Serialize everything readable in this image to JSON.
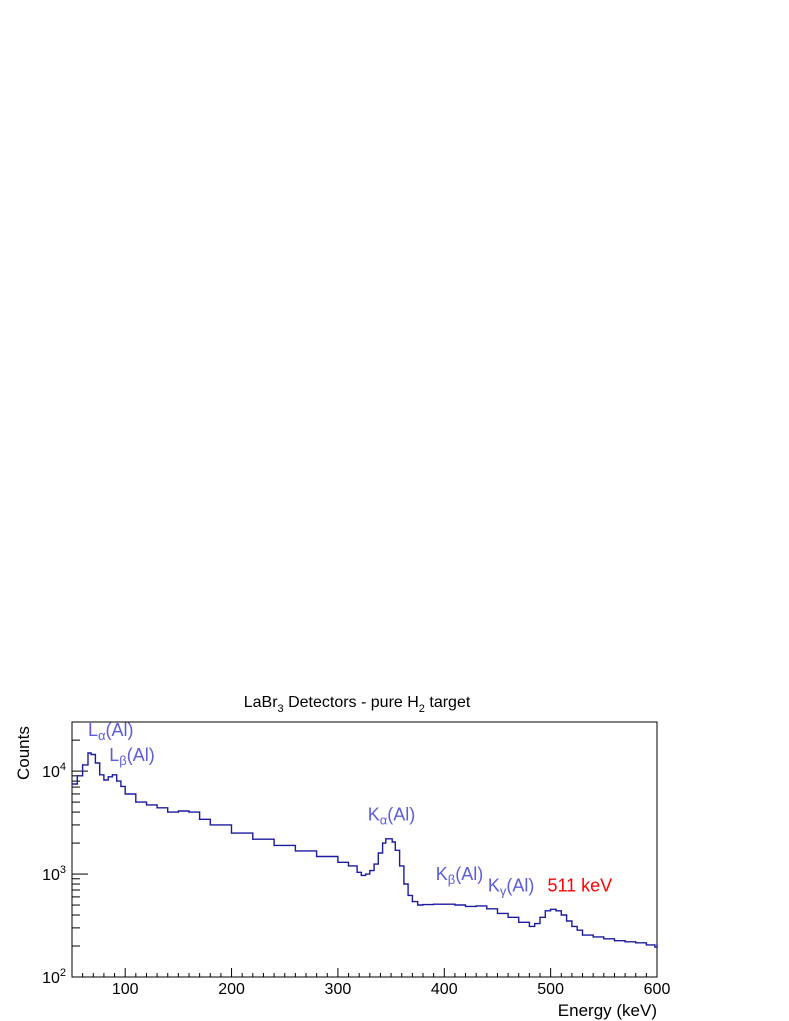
{
  "chart_data": {
    "type": "line",
    "title": {
      "main": "LaBr",
      "sub1": "3",
      "mid": " Detectors - pure H",
      "sub2": "2",
      "end": " target"
    },
    "xlabel": "Energy (keV)",
    "ylabel": "Counts",
    "xlim": [
      50,
      600
    ],
    "ylim": [
      100,
      30000
    ],
    "yscale": "log",
    "grid": false,
    "x_ticks": [
      100,
      200,
      300,
      400,
      500,
      600
    ],
    "y_ticks": [
      {
        "base": "10",
        "exp": "2",
        "value": 100
      },
      {
        "base": "10",
        "exp": "3",
        "value": 1000
      },
      {
        "base": "10",
        "exp": "4",
        "value": 10000
      }
    ],
    "line_color": "#1c1ca0",
    "series": [
      {
        "x": [
          50,
          55,
          60,
          65,
          68,
          72,
          76,
          80,
          84,
          88,
          92,
          96,
          100,
          110,
          120,
          130,
          140,
          150,
          160,
          170,
          180,
          200,
          220,
          240,
          260,
          280,
          300,
          310,
          318,
          322,
          326,
          330,
          334,
          338,
          342,
          345,
          348,
          351,
          354,
          358,
          362,
          366,
          370,
          375,
          380,
          390,
          400,
          410,
          420,
          430,
          440,
          450,
          460,
          470,
          480,
          485,
          490,
          495,
          500,
          505,
          510,
          515,
          520,
          525,
          530,
          540,
          550,
          560,
          570,
          580,
          590,
          598,
          600
        ],
        "y": [
          7500,
          9000,
          11500,
          15000,
          14500,
          12000,
          9200,
          8200,
          8800,
          9200,
          8000,
          7100,
          6000,
          5000,
          4700,
          4400,
          4000,
          4100,
          4000,
          3400,
          3000,
          2500,
          2180,
          1900,
          1680,
          1480,
          1300,
          1200,
          1040,
          970,
          1000,
          1080,
          1250,
          1600,
          2000,
          2200,
          2200,
          2050,
          1700,
          1200,
          800,
          620,
          540,
          500,
          505,
          510,
          510,
          500,
          485,
          490,
          460,
          415,
          380,
          340,
          310,
          330,
          380,
          440,
          455,
          440,
          400,
          350,
          310,
          285,
          255,
          245,
          235,
          225,
          220,
          215,
          205,
          195,
          210
        ]
      }
    ],
    "annotations": [
      {
        "main": "L",
        "sub": "α",
        "tail": "(Al)",
        "x": 65,
        "y": 22000,
        "color": "#5c5cdc"
      },
      {
        "main": "L",
        "sub": "β",
        "tail": "(Al)",
        "x": 85,
        "y": 12500,
        "color": "#5c5cdc"
      },
      {
        "main": "K",
        "sub": "α",
        "tail": "(Al)",
        "x": 328,
        "y": 3300,
        "color": "#5c5cdc"
      },
      {
        "main": "K",
        "sub": "β",
        "tail": "(Al)",
        "x": 392,
        "y": 880,
        "color": "#5c5cdc"
      },
      {
        "main": "K",
        "sub": "γ",
        "tail": "(Al)",
        "x": 441,
        "y": 680,
        "color": "#5c5cdc"
      },
      {
        "main": "511 keV",
        "sub": "",
        "tail": "",
        "x": 497,
        "y": 680,
        "color": "#ff0000"
      }
    ]
  }
}
